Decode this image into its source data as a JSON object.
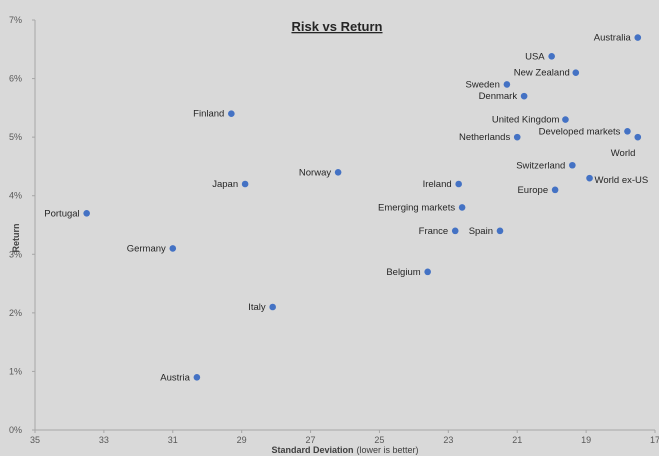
{
  "chart_data": {
    "type": "scatter",
    "title": "Risk vs Return",
    "xlabel": "Standard Deviation",
    "xlabel_note": "(lower is better)",
    "ylabel": "Return",
    "xlim": [
      35,
      17
    ],
    "ylim": [
      0,
      7
    ],
    "x_reversed": true,
    "x_ticks": [
      "35",
      "33",
      "31",
      "29",
      "27",
      "25",
      "23",
      "21",
      "19",
      "17"
    ],
    "y_ticks": [
      "0%",
      "1%",
      "2%",
      "3%",
      "4%",
      "5%",
      "6%",
      "7%"
    ],
    "grid": false,
    "legend": "none",
    "marker_color": "#4472c4",
    "points": [
      {
        "label": "Australia",
        "x": 17.5,
        "y": 6.7
      },
      {
        "label": "USA",
        "x": 20.0,
        "y": 6.38
      },
      {
        "label": "New Zealand",
        "x": 19.3,
        "y": 6.1
      },
      {
        "label": "Sweden",
        "x": 21.3,
        "y": 5.9
      },
      {
        "label": "Denmark",
        "x": 20.8,
        "y": 5.7
      },
      {
        "label": "Finland",
        "x": 29.3,
        "y": 5.4
      },
      {
        "label": "United Kingdom",
        "x": 19.6,
        "y": 5.3
      },
      {
        "label": "Developed markets",
        "x": 17.8,
        "y": 5.1
      },
      {
        "label": "World",
        "x": 17.5,
        "y": 5.0
      },
      {
        "label": "Netherlands",
        "x": 21.0,
        "y": 5.0
      },
      {
        "label": "Switzerland",
        "x": 19.4,
        "y": 4.52
      },
      {
        "label": "Norway",
        "x": 26.2,
        "y": 4.4
      },
      {
        "label": "World ex-US",
        "x": 18.9,
        "y": 4.3
      },
      {
        "label": "Japan",
        "x": 28.9,
        "y": 4.2
      },
      {
        "label": "Ireland",
        "x": 22.7,
        "y": 4.2
      },
      {
        "label": "Europe",
        "x": 19.9,
        "y": 4.1
      },
      {
        "label": "Emerging markets",
        "x": 22.6,
        "y": 3.8
      },
      {
        "label": "Portugal",
        "x": 33.5,
        "y": 3.7
      },
      {
        "label": "France",
        "x": 22.8,
        "y": 3.4
      },
      {
        "label": "Spain",
        "x": 21.5,
        "y": 3.4
      },
      {
        "label": "Germany",
        "x": 31.0,
        "y": 3.1
      },
      {
        "label": "Belgium",
        "x": 23.6,
        "y": 2.7
      },
      {
        "label": "Italy",
        "x": 28.1,
        "y": 2.1
      },
      {
        "label": "Austria",
        "x": 30.3,
        "y": 0.9
      }
    ]
  }
}
